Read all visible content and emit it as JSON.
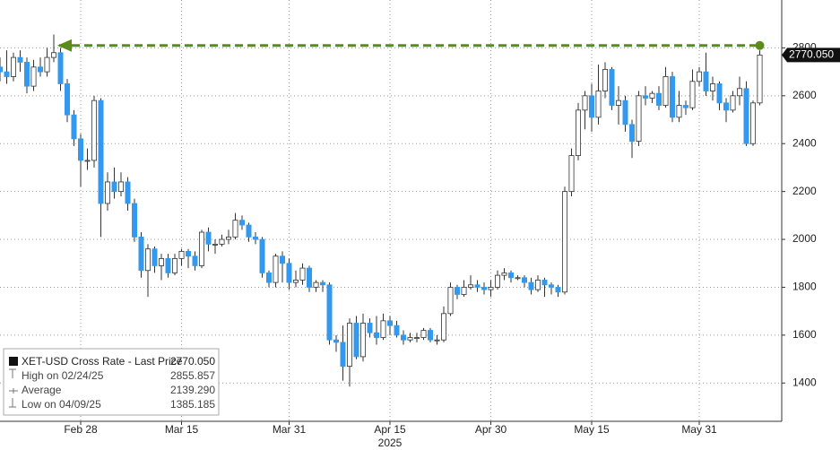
{
  "chart_data": {
    "type": "candlestick",
    "categories": [
      null,
      null,
      null,
      null,
      null,
      null,
      null,
      null,
      null,
      null,
      null,
      null,
      "Feb 28",
      null,
      null,
      null,
      null,
      null,
      null,
      null,
      null,
      null,
      null,
      null,
      null,
      null,
      null,
      "Mar 15",
      null,
      null,
      null,
      null,
      null,
      null,
      null,
      null,
      null,
      null,
      null,
      null,
      null,
      null,
      null,
      "Mar 31",
      null,
      null,
      null,
      null,
      null,
      null,
      null,
      null,
      null,
      null,
      null,
      null,
      null,
      null,
      "Apr 15",
      null,
      null,
      null,
      null,
      null,
      null,
      null,
      null,
      null,
      null,
      null,
      null,
      null,
      null,
      "Apr 30",
      null,
      null,
      null,
      null,
      null,
      null,
      null,
      null,
      null,
      null,
      null,
      null,
      null,
      null,
      "May 15",
      null,
      null,
      null,
      null,
      null,
      null,
      null,
      null,
      null,
      null,
      null,
      null,
      null,
      null,
      null,
      "May 31",
      null,
      null,
      null,
      null,
      null,
      null,
      null,
      null,
      null
    ],
    "x_year_label": "2025",
    "open": [
      2720,
      2700,
      2680,
      2760,
      2740,
      2640,
      2720,
      2700,
      2760,
      2780,
      2650,
      2520,
      2420,
      2330,
      2330,
      2580,
      2150,
      2240,
      2200,
      2240,
      2150,
      2010,
      1870,
      1960,
      1890,
      1920,
      1860,
      1920,
      1950,
      1930,
      1890,
      2030,
      1980,
      1980,
      2000,
      2010,
      2080,
      2060,
      2010,
      2000,
      1860,
      1820,
      1930,
      1900,
      1820,
      1830,
      1880,
      1800,
      1820,
      1810,
      1580,
      1570,
      1470,
      1650,
      1510,
      1650,
      1610,
      1590,
      1660,
      1640,
      1600,
      1580,
      1590,
      1590,
      1620,
      1580,
      1580,
      1690,
      1800,
      1770,
      1800,
      1810,
      1800,
      1790,
      1800,
      1850,
      1860,
      1840,
      1840,
      1820,
      1790,
      1830,
      1810,
      1800,
      1780,
      2200,
      2350,
      2540,
      2600,
      2510,
      2620,
      2710,
      2560,
      2580,
      2480,
      2410,
      2600,
      2590,
      2610,
      2560,
      2680,
      2510,
      2560,
      2550,
      2660,
      2700,
      2620,
      2650,
      2570,
      2540,
      2600,
      2630,
      2400,
      2570
    ],
    "high": [
      2760,
      2790,
      2780,
      2790,
      2760,
      2750,
      2760,
      2800,
      2855.857,
      2800,
      2670,
      2540,
      2440,
      2380,
      2600,
      2590,
      2280,
      2300,
      2280,
      2260,
      2170,
      2030,
      1980,
      1970,
      1940,
      1940,
      1940,
      1960,
      1960,
      1950,
      2040,
      2050,
      2000,
      2020,
      2040,
      2110,
      2100,
      2070,
      2030,
      2010,
      1870,
      1940,
      1950,
      1920,
      1870,
      1900,
      1890,
      1830,
      1830,
      1820,
      1600,
      1640,
      1670,
      1680,
      1690,
      1670,
      1680,
      1690,
      1680,
      1660,
      1620,
      1610,
      1610,
      1630,
      1630,
      1600,
      1720,
      1820,
      1810,
      1830,
      1850,
      1830,
      1820,
      1830,
      1870,
      1880,
      1870,
      1850,
      1850,
      1840,
      1850,
      1840,
      1820,
      1810,
      2220,
      2380,
      2570,
      2620,
      2650,
      2730,
      2740,
      2720,
      2640,
      2600,
      2500,
      2620,
      2640,
      2620,
      2640,
      2720,
      2700,
      2620,
      2580,
      2710,
      2720,
      2780,
      2680,
      2660,
      2590,
      2620,
      2680,
      2660,
      2580,
      2790
    ],
    "low": [
      2660,
      2650,
      2660,
      2700,
      2610,
      2620,
      2680,
      2680,
      2740,
      2620,
      2490,
      2390,
      2220,
      2290,
      2300,
      2010,
      2120,
      2170,
      2180,
      2120,
      1990,
      1840,
      1760,
      1860,
      1830,
      1840,
      1850,
      1890,
      1880,
      1870,
      1880,
      1950,
      1940,
      1970,
      1980,
      2000,
      2040,
      1990,
      1980,
      1840,
      1800,
      1800,
      1820,
      1790,
      1800,
      1810,
      1780,
      1780,
      1780,
      1560,
      1530,
      1410,
      1385.185,
      1500,
      1490,
      1590,
      1560,
      1580,
      1600,
      1590,
      1560,
      1570,
      1570,
      1580,
      1570,
      1560,
      1570,
      1680,
      1750,
      1760,
      1790,
      1780,
      1770,
      1760,
      1790,
      1830,
      1820,
      1830,
      1800,
      1770,
      1780,
      1760,
      1770,
      1760,
      1770,
      2180,
      2330,
      2460,
      2450,
      2480,
      2590,
      2540,
      2480,
      2450,
      2340,
      2390,
      2560,
      2570,
      2540,
      2550,
      2490,
      2490,
      2520,
      2540,
      2640,
      2600,
      2580,
      2540,
      2490,
      2530,
      2560,
      2390,
      2390,
      2560
    ],
    "close": [
      2700,
      2680,
      2760,
      2740,
      2640,
      2720,
      2700,
      2760,
      2780,
      2650,
      2520,
      2420,
      2330,
      2330,
      2580,
      2150,
      2240,
      2200,
      2240,
      2150,
      2010,
      1870,
      1960,
      1890,
      1920,
      1860,
      1920,
      1950,
      1930,
      1890,
      2030,
      1980,
      1980,
      2000,
      2010,
      2080,
      2060,
      2010,
      2000,
      1860,
      1820,
      1930,
      1900,
      1820,
      1830,
      1880,
      1800,
      1820,
      1810,
      1580,
      1570,
      1470,
      1650,
      1510,
      1650,
      1610,
      1590,
      1660,
      1640,
      1600,
      1580,
      1590,
      1590,
      1620,
      1580,
      1580,
      1690,
      1800,
      1770,
      1800,
      1810,
      1800,
      1790,
      1800,
      1850,
      1860,
      1840,
      1840,
      1820,
      1790,
      1830,
      1810,
      1800,
      1780,
      2200,
      2350,
      2540,
      2600,
      2510,
      2620,
      2710,
      2560,
      2580,
      2480,
      2410,
      2600,
      2590,
      2610,
      2560,
      2680,
      2510,
      2560,
      2550,
      2660,
      2700,
      2620,
      2650,
      2570,
      2540,
      2600,
      2630,
      2400,
      2570,
      2770.05
    ],
    "up_color": "#ffffff",
    "down_color": "#3399ee",
    "outline_color": "#333333",
    "ylim": [
      1240,
      3000
    ],
    "yticks": [
      1400,
      1600,
      1800,
      2000,
      2200,
      2400,
      2600,
      2800
    ],
    "grid": true,
    "last_price_label": "2770.050",
    "reference_line": {
      "value": 2810,
      "color": "#5b8c1a"
    },
    "legend": {
      "title": "XET-USD Cross Rate - Last Price",
      "title_value": "2770.050",
      "rows": [
        {
          "label": "High on 02/24/25",
          "value": "2855.857"
        },
        {
          "label": "Average",
          "value": "2139.290"
        },
        {
          "label": "Low on 04/09/25",
          "value": "1385.185"
        }
      ]
    }
  }
}
